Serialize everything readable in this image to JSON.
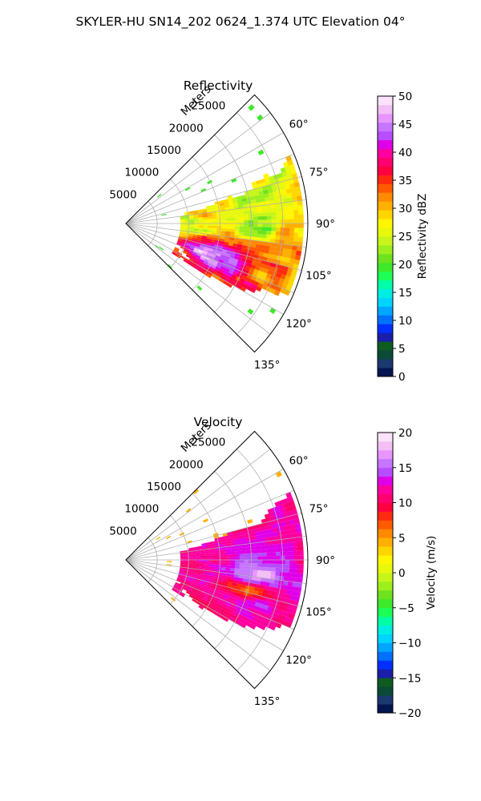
{
  "figure": {
    "suptitle": "SKYLER-HU  SN14_202  0624_1.374 UTC Elevation 04°"
  },
  "chart_data": [
    {
      "type": "heatmap",
      "projection": "polar-sector",
      "title": "Reflectivity",
      "radial_label": "Meters",
      "radial_ticks": [
        "5000",
        "10000",
        "15000",
        "20000",
        "25000"
      ],
      "radial_tick_values": [
        5000,
        10000,
        15000,
        20000,
        25000
      ],
      "r_max": 29000,
      "theta_ticks": [
        "60°",
        "75°",
        "90°",
        "105°",
        "120°",
        "135°"
      ],
      "theta_tick_values": [
        60,
        75,
        90,
        105,
        120,
        135
      ],
      "theta_range_deg": [
        45,
        135
      ],
      "colorbar": {
        "label": "Reflectivity dBZ",
        "ticks": [
          "0",
          "5",
          "10",
          "15",
          "20",
          "25",
          "30",
          "35",
          "40",
          "45",
          "50"
        ],
        "range": [
          0,
          50
        ],
        "colors": [
          "#04164f",
          "#1b3870",
          "#0b4a36",
          "#0e5c22",
          "#1a1ea8",
          "#0030ff",
          "#0070ff",
          "#00a6ff",
          "#00d4ff",
          "#00eee2",
          "#00ffa6",
          "#1cff55",
          "#3ee82a",
          "#6ee21e",
          "#9cef1d",
          "#c7f51a",
          "#e8f80c",
          "#fff600",
          "#ffd500",
          "#ffb000",
          "#ff8a00",
          "#ff5a00",
          "#ff2a10",
          "#ff0040",
          "#ff0070",
          "#ff00a0",
          "#e000e8",
          "#b84cff",
          "#c675ff",
          "#e895ff",
          "#f4bff5",
          "#fbe2fb"
        ]
      },
      "field": "reflectivity",
      "echo_cells": [
        {
          "az": 80,
          "range_m": 17000,
          "dbz": 22
        },
        {
          "az": 88,
          "range_m": 20000,
          "dbz": 22
        },
        {
          "az": 95,
          "range_m": 20000,
          "dbz": 30
        },
        {
          "az": 100,
          "range_m": 22000,
          "dbz": 36
        },
        {
          "az": 107,
          "range_m": 15000,
          "dbz": 38
        },
        {
          "az": 112,
          "range_m": 14000,
          "dbz": 42
        },
        {
          "az": 118,
          "range_m": 13000,
          "dbz": 40
        }
      ]
    },
    {
      "type": "heatmap",
      "projection": "polar-sector",
      "title": "Velocity",
      "radial_label": "Meters",
      "radial_ticks": [
        "5000",
        "10000",
        "15000",
        "20000",
        "25000"
      ],
      "radial_tick_values": [
        5000,
        10000,
        15000,
        20000,
        25000
      ],
      "r_max": 29000,
      "theta_ticks": [
        "60°",
        "75°",
        "90°",
        "105°",
        "120°",
        "135°"
      ],
      "theta_tick_values": [
        60,
        75,
        90,
        105,
        120,
        135
      ],
      "theta_range_deg": [
        45,
        135
      ],
      "colorbar": {
        "label": "Velocity (m/s)",
        "ticks": [
          "−20",
          "−15",
          "−10",
          "−5",
          "0",
          "5",
          "10",
          "15",
          "20"
        ],
        "range": [
          -20,
          20
        ],
        "colors": [
          "#04164f",
          "#1b3870",
          "#0b4a36",
          "#0e5c22",
          "#1a1ea8",
          "#0030ff",
          "#0070ff",
          "#00a6ff",
          "#00d4ff",
          "#00eee2",
          "#00ffa6",
          "#1cff55",
          "#3ee82a",
          "#6ee21e",
          "#9cef1d",
          "#c7f51a",
          "#e8f80c",
          "#fff600",
          "#ffd500",
          "#ffb000",
          "#ff8a00",
          "#ff5a00",
          "#ff2a10",
          "#ff0040",
          "#ff0070",
          "#ff00a0",
          "#e000e8",
          "#b84cff",
          "#c675ff",
          "#e895ff",
          "#f4bff5",
          "#fbe2fb"
        ]
      },
      "field": "velocity",
      "echo_cells": [
        {
          "az": 80,
          "range_m": 20000,
          "ms": 10
        },
        {
          "az": 92,
          "range_m": 22000,
          "ms": 14
        },
        {
          "az": 100,
          "range_m": 20000,
          "ms": 12
        },
        {
          "az": 108,
          "range_m": 18000,
          "ms": 4
        },
        {
          "az": 112,
          "range_m": 13000,
          "ms": 11
        },
        {
          "az": 118,
          "range_m": 14000,
          "ms": 13
        }
      ]
    }
  ]
}
